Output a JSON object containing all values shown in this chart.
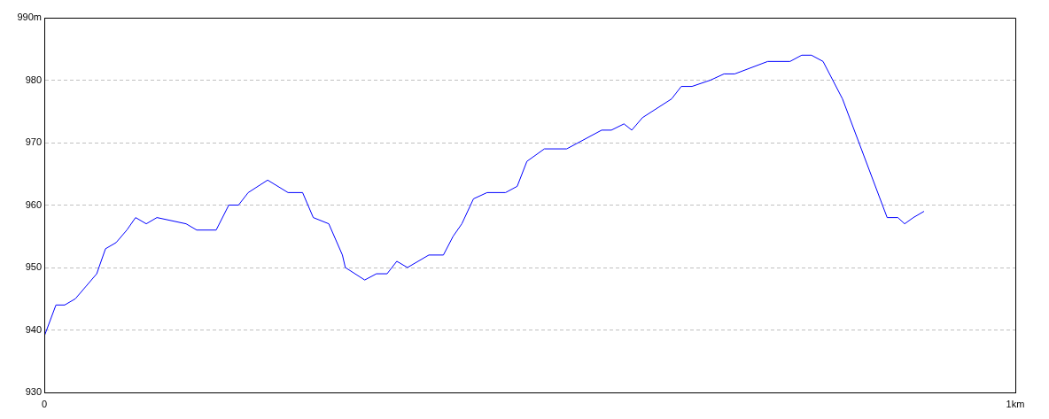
{
  "chart_data": {
    "type": "line",
    "x": [
      0,
      0.012,
      0.021,
      0.032,
      0.043,
      0.054,
      0.063,
      0.074,
      0.085,
      0.094,
      0.105,
      0.116,
      0.146,
      0.157,
      0.177,
      0.19,
      0.2,
      0.21,
      0.23,
      0.251,
      0.266,
      0.277,
      0.293,
      0.307,
      0.31,
      0.33,
      0.342,
      0.353,
      0.363,
      0.374,
      0.396,
      0.411,
      0.421,
      0.43,
      0.442,
      0.456,
      0.475,
      0.487,
      0.497,
      0.515,
      0.538,
      0.574,
      0.584,
      0.597,
      0.605,
      0.616,
      0.646,
      0.656,
      0.667,
      0.686,
      0.7,
      0.711,
      0.745,
      0.768,
      0.78,
      0.79,
      0.802,
      0.822,
      0.868,
      0.879,
      0.886,
      0.895,
      0.906
    ],
    "series": [
      {
        "color": "#0000ff",
        "values": [
          939,
          944,
          944,
          945,
          947,
          949,
          953,
          954,
          956,
          958,
          957,
          958,
          957,
          956,
          956,
          960,
          960,
          962,
          964,
          962,
          962,
          958,
          957,
          952,
          950,
          948,
          949,
          949,
          951,
          950,
          952,
          952,
          955,
          957,
          961,
          962,
          962,
          963,
          967,
          969,
          969,
          972,
          972,
          973,
          972,
          974,
          977,
          979,
          979,
          980,
          981,
          981,
          983,
          983,
          984,
          984,
          983,
          977,
          958,
          958,
          957,
          958,
          959
        ]
      }
    ],
    "xlim": [
      0,
      1
    ],
    "xticks": [
      0,
      {
        "value": 1,
        "label": "1km"
      }
    ],
    "ylim": [
      930,
      990
    ],
    "yticks": [
      930,
      940,
      950,
      960,
      970,
      980,
      {
        "value": 990,
        "label": "990m"
      }
    ],
    "grid": "y",
    "legend": false,
    "marker": "none",
    "line_style": "solid"
  }
}
